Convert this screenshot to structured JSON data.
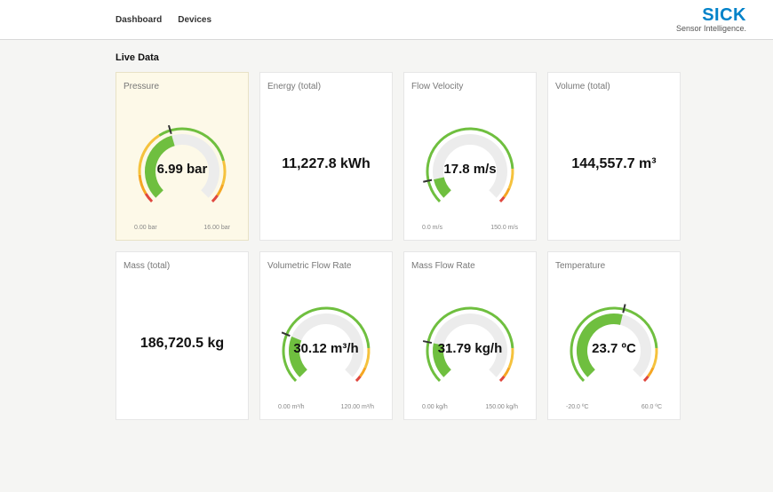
{
  "nav": {
    "dashboard": "Dashboard",
    "devices": "Devices"
  },
  "brand": {
    "logo": "SICK",
    "tagline": "Sensor Intelligence."
  },
  "section_title": "Live Data",
  "colors": {
    "track": "#ececec",
    "green": "#6fbf3f",
    "yellow": "#f5c23d",
    "orange": "#f5a623",
    "red": "#e0483f",
    "needle": "#333333"
  },
  "cards": [
    {
      "title": "Pressure",
      "value": "6.99 bar",
      "highlight": true,
      "type": "gauge",
      "min_label": "0.00 bar",
      "max_label": "16.00 bar",
      "segments": [
        {
          "start": 0.0,
          "end": 0.05,
          "color": "#e0483f"
        },
        {
          "start": 0.05,
          "end": 0.15,
          "color": "#f5a623"
        },
        {
          "start": 0.15,
          "end": 0.38,
          "color": "#f5c23d"
        },
        {
          "start": 0.38,
          "end": 0.78,
          "color": "#6fbf3f"
        },
        {
          "start": 0.78,
          "end": 0.9,
          "color": "#f5c23d"
        },
        {
          "start": 0.9,
          "end": 0.96,
          "color": "#f5a623"
        },
        {
          "start": 0.96,
          "end": 1.0,
          "color": "#e0483f"
        }
      ],
      "needle_at": 0.44,
      "value_fill": 0.44
    },
    {
      "title": "Energy (total)",
      "value": "11,227.8 kWh",
      "type": "number"
    },
    {
      "title": "Flow Velocity",
      "value": "17.8 m/s",
      "type": "gauge",
      "min_label": "0.0 m/s",
      "max_label": "150.0 m/s",
      "segments": [
        {
          "start": 0.0,
          "end": 0.82,
          "color": "#6fbf3f"
        },
        {
          "start": 0.82,
          "end": 0.92,
          "color": "#f5c23d"
        },
        {
          "start": 0.92,
          "end": 0.97,
          "color": "#f5a623"
        },
        {
          "start": 0.97,
          "end": 1.0,
          "color": "#e0483f"
        }
      ],
      "needle_at": 0.12,
      "value_fill": 0.12
    },
    {
      "title": "Volume (total)",
      "value": "144,557.7 m³",
      "type": "number"
    },
    {
      "title": "Mass (total)",
      "value": "186,720.5 kg",
      "type": "number"
    },
    {
      "title": "Volumetric Flow Rate",
      "value": "30.12 m³/h",
      "type": "gauge",
      "min_label": "0.00 m³/h",
      "max_label": "120.00 m³/h",
      "segments": [
        {
          "start": 0.0,
          "end": 0.82,
          "color": "#6fbf3f"
        },
        {
          "start": 0.82,
          "end": 0.92,
          "color": "#f5c23d"
        },
        {
          "start": 0.92,
          "end": 0.97,
          "color": "#f5a623"
        },
        {
          "start": 0.97,
          "end": 1.0,
          "color": "#e0483f"
        }
      ],
      "needle_at": 0.25,
      "value_fill": 0.25
    },
    {
      "title": "Mass Flow Rate",
      "value": "31.79 kg/h",
      "type": "gauge",
      "min_label": "0.00 kg/h",
      "max_label": "150.00 kg/h",
      "segments": [
        {
          "start": 0.0,
          "end": 0.82,
          "color": "#6fbf3f"
        },
        {
          "start": 0.82,
          "end": 0.92,
          "color": "#f5c23d"
        },
        {
          "start": 0.92,
          "end": 0.97,
          "color": "#f5a623"
        },
        {
          "start": 0.97,
          "end": 1.0,
          "color": "#e0483f"
        }
      ],
      "needle_at": 0.21,
      "value_fill": 0.21
    },
    {
      "title": "Temperature",
      "value": "23.7 ºC",
      "type": "gauge",
      "min_label": "-20.0 ºC",
      "max_label": "60.0 ºC",
      "segments": [
        {
          "start": 0.0,
          "end": 0.82,
          "color": "#6fbf3f"
        },
        {
          "start": 0.82,
          "end": 0.92,
          "color": "#f5c23d"
        },
        {
          "start": 0.92,
          "end": 0.97,
          "color": "#f5a623"
        },
        {
          "start": 0.97,
          "end": 1.0,
          "color": "#e0483f"
        }
      ],
      "needle_at": 0.55,
      "value_fill": 0.55
    }
  ]
}
